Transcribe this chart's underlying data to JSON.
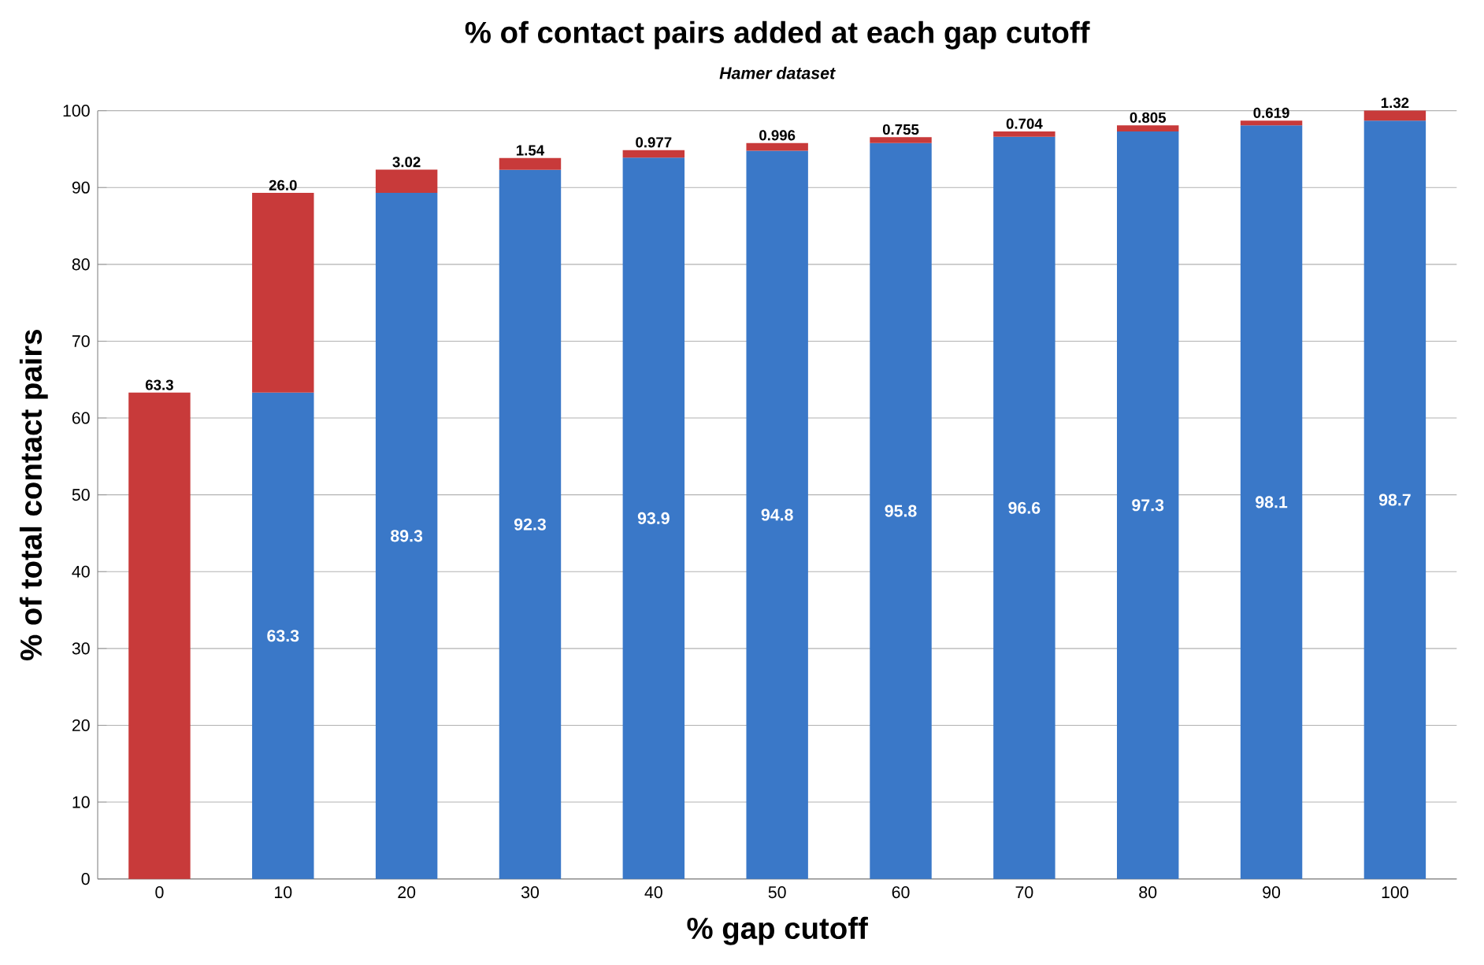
{
  "chart_data": {
    "type": "bar",
    "stacked": true,
    "title": "% of contact pairs added at each gap cutoff",
    "subtitle": "Hamer dataset",
    "xlabel": "% gap cutoff",
    "ylabel": "% of total contact pairs",
    "categories": [
      "0",
      "10",
      "20",
      "30",
      "40",
      "50",
      "60",
      "70",
      "80",
      "90",
      "100"
    ],
    "series": [
      {
        "color": "#3a78c8",
        "values": [
          null,
          63.3,
          89.3,
          92.3,
          93.9,
          94.8,
          95.8,
          96.6,
          97.3,
          98.1,
          98.7
        ],
        "value_labels": [
          null,
          "63.3",
          "89.3",
          "92.3",
          "93.9",
          "94.8",
          "95.8",
          "96.6",
          "97.3",
          "98.1",
          "98.7"
        ]
      },
      {
        "color": "#c83a3a",
        "values": [
          63.3,
          26.0,
          3.02,
          1.54,
          0.977,
          0.996,
          0.755,
          0.704,
          0.805,
          0.619,
          1.32
        ],
        "value_labels": [
          "63.3",
          "26.0",
          "3.02",
          "1.54",
          "0.977",
          "0.996",
          "0.755",
          "0.704",
          "0.805",
          "0.619",
          "1.32"
        ]
      }
    ],
    "ylim": [
      0,
      100
    ],
    "yticks": [
      0,
      10,
      20,
      30,
      40,
      50,
      60,
      70,
      80,
      90,
      100
    ],
    "grid": "y"
  }
}
